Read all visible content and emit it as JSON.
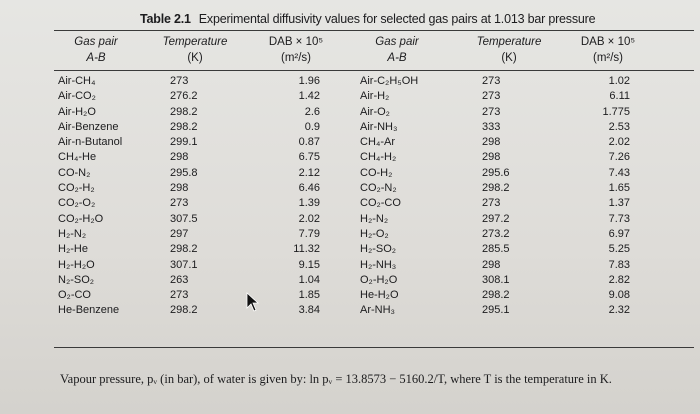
{
  "caption": {
    "label": "Table 2.1",
    "text": "Experimental diffusivity values for selected gas pairs at 1.013 bar pressure"
  },
  "headers": {
    "gas_pair_left": "Gas pair",
    "pair_left": "A-B",
    "temp_left": "Temperature",
    "temp_unit_left": "(K)",
    "dab_left": "DAB × 10⁵",
    "dab_unit_left": "(m²/s)",
    "gas_pair_right": "Gas pair",
    "pair_right": "A-B",
    "temp_right": "Temperature",
    "temp_unit_right": "(K)",
    "dab_right": "DAB × 10⁵",
    "dab_unit_right": "(m²/s)"
  },
  "left_rows": [
    {
      "pair": "Air-CH₄",
      "temp": "273",
      "dab": "1.96"
    },
    {
      "pair": "Air-CO₂",
      "temp": "276.2",
      "dab": "1.42"
    },
    {
      "pair": "Air-H₂O",
      "temp": "298.2",
      "dab": "2.6"
    },
    {
      "pair": "Air-Benzene",
      "temp": "298.2",
      "dab": "0.9"
    },
    {
      "pair": "Air-n-Butanol",
      "temp": "299.1",
      "dab": "0.87"
    },
    {
      "pair": "CH₄-He",
      "temp": "298",
      "dab": "6.75"
    },
    {
      "pair": "CO-N₂",
      "temp": "295.8",
      "dab": "2.12"
    },
    {
      "pair": "CO₂-H₂",
      "temp": "298",
      "dab": "6.46"
    },
    {
      "pair": "CO₂-O₂",
      "temp": "273",
      "dab": "1.39"
    },
    {
      "pair": "CO₂-H₂O",
      "temp": "307.5",
      "dab": "2.02"
    },
    {
      "pair": "H₂-N₂",
      "temp": "297",
      "dab": "7.79"
    },
    {
      "pair": "H₂-He",
      "temp": "298.2",
      "dab": "11.32"
    },
    {
      "pair": "H₂-H₂O",
      "temp": "307.1",
      "dab": "9.15"
    },
    {
      "pair": "N₂-SO₂",
      "temp": "263",
      "dab": "1.04"
    },
    {
      "pair": "O₂-CO",
      "temp": "273",
      "dab": "1.85"
    },
    {
      "pair": "He-Benzene",
      "temp": "298.2",
      "dab": "3.84"
    }
  ],
  "right_rows": [
    {
      "pair": "Air-C₂H₅OH",
      "temp": "273",
      "dab": "1.02"
    },
    {
      "pair": "Air-H₂",
      "temp": "273",
      "dab": "6.11"
    },
    {
      "pair": "Air-O₂",
      "temp": "273",
      "dab": "1.775"
    },
    {
      "pair": "Air-NH₃",
      "temp": "333",
      "dab": "2.53"
    },
    {
      "pair": "CH₄-Ar",
      "temp": "298",
      "dab": "2.02"
    },
    {
      "pair": "CH₄-H₂",
      "temp": "298",
      "dab": "7.26"
    },
    {
      "pair": "CO-H₂",
      "temp": "295.6",
      "dab": "7.43"
    },
    {
      "pair": "CO₂-N₂",
      "temp": "298.2",
      "dab": "1.65"
    },
    {
      "pair": "CO₂-CO",
      "temp": "273",
      "dab": "1.37"
    },
    {
      "pair": "H₂-N₂",
      "temp": "297.2",
      "dab": "7.73"
    },
    {
      "pair": "H₂-O₂",
      "temp": "273.2",
      "dab": "6.97"
    },
    {
      "pair": "H₂-SO₂",
      "temp": "285.5",
      "dab": "5.25"
    },
    {
      "pair": "H₂-NH₃",
      "temp": "298",
      "dab": "7.83"
    },
    {
      "pair": "O₂-H₂O",
      "temp": "308.1",
      "dab": "2.82"
    },
    {
      "pair": "He-H₂O",
      "temp": "298.2",
      "dab": "9.08"
    },
    {
      "pair": "Ar-NH₃",
      "temp": "295.1",
      "dab": "2.32"
    }
  ],
  "footer": {
    "text": "Vapour pressure, pᵥ (in bar), of water is given by: ln pᵥ = 13.8573 − 5160.2/T, where T is the temperature in K."
  },
  "icons": {
    "cursor": "mouse-pointer-icon"
  }
}
